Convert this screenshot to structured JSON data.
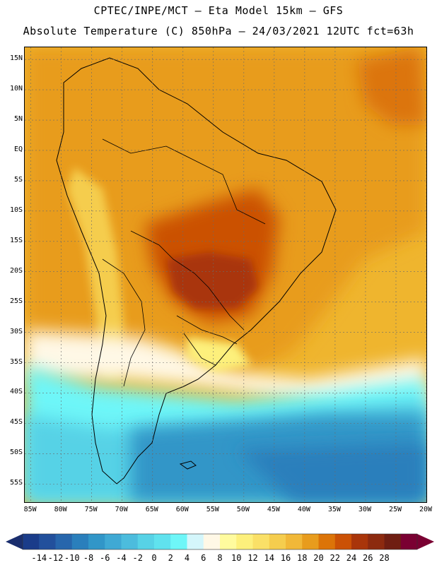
{
  "header": {
    "line1": "CPTEC/INPE/MCT –  Eta Model 15km – GFS",
    "line2": "Absolute Temperature (C) 850hPa – 24/03/2021 12UTC fct=63h"
  },
  "map": {
    "region": "South America",
    "variable": "Absolute Temperature (C)",
    "level": "850hPa",
    "lat_range": [
      -58,
      17
    ],
    "lon_range": [
      -86,
      -20
    ],
    "lat_ticks": [
      "15N",
      "10N",
      "5N",
      "EQ",
      "5S",
      "10S",
      "15S",
      "20S",
      "25S",
      "30S",
      "35S",
      "40S",
      "45S",
      "50S",
      "55S"
    ],
    "lat_values": [
      15,
      10,
      5,
      0,
      -5,
      -10,
      -15,
      -20,
      -25,
      -30,
      -35,
      -40,
      -45,
      -50,
      -55
    ],
    "lon_ticks": [
      "85W",
      "80W",
      "75W",
      "70W",
      "65W",
      "60W",
      "55W",
      "50W",
      "45W",
      "40W",
      "35W",
      "30W",
      "25W",
      "20W"
    ],
    "lon_values": [
      -85,
      -80,
      -75,
      -70,
      -65,
      -60,
      -55,
      -50,
      -45,
      -40,
      -35,
      -30,
      -25,
      -20
    ]
  },
  "colorbar": {
    "labels": [
      "-14",
      "-12",
      "-10",
      "-8",
      "-6",
      "-4",
      "-2",
      "0",
      "2",
      "4",
      "6",
      "8",
      "10",
      "12",
      "14",
      "16",
      "18",
      "20",
      "22",
      "24",
      "26",
      "28"
    ],
    "colors": [
      "#1a3c8a",
      "#22509c",
      "#2766ac",
      "#2a7fbc",
      "#3196c8",
      "#3fa9d4",
      "#4cbcdd",
      "#57d2e6",
      "#60e2ee",
      "#6ef6f8",
      "#d4f6fb",
      "#fff8e6",
      "#fffb9e",
      "#fdf07c",
      "#fae067",
      "#f5cd4e",
      "#f1b838",
      "#e89c1d",
      "#dc7408",
      "#cb5105",
      "#a9350a",
      "#8c2a0f",
      "#6f1e12",
      "#7a0032"
    ],
    "arrow_left_color": "#1a2e6e",
    "arrow_right_color": "#7a0032"
  },
  "colors": {
    "warm_core": "#b8520e",
    "warm": "#e0931d",
    "mid_warm": "#efb52e",
    "ocean_cold": "#2f84c2",
    "coast": "#000000"
  }
}
